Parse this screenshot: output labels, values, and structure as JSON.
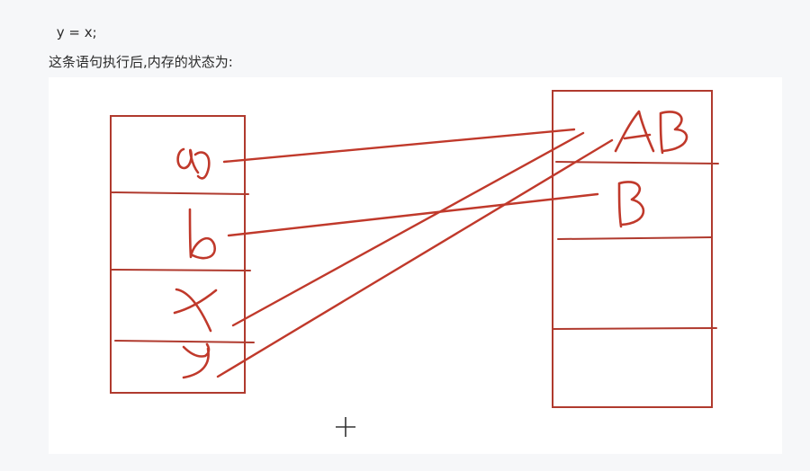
{
  "content": {
    "code_line": " y = x;",
    "caption": "这条语句执行后,内存的状态为:"
  },
  "figure": {
    "description_labels": {
      "stack": [
        "a",
        "b",
        "x",
        "y"
      ],
      "heap": [
        "AB",
        "B"
      ]
    },
    "ink_color": "#c0392b",
    "background": "#ffffff"
  },
  "cursor": {
    "symbol": "crosshair"
  }
}
